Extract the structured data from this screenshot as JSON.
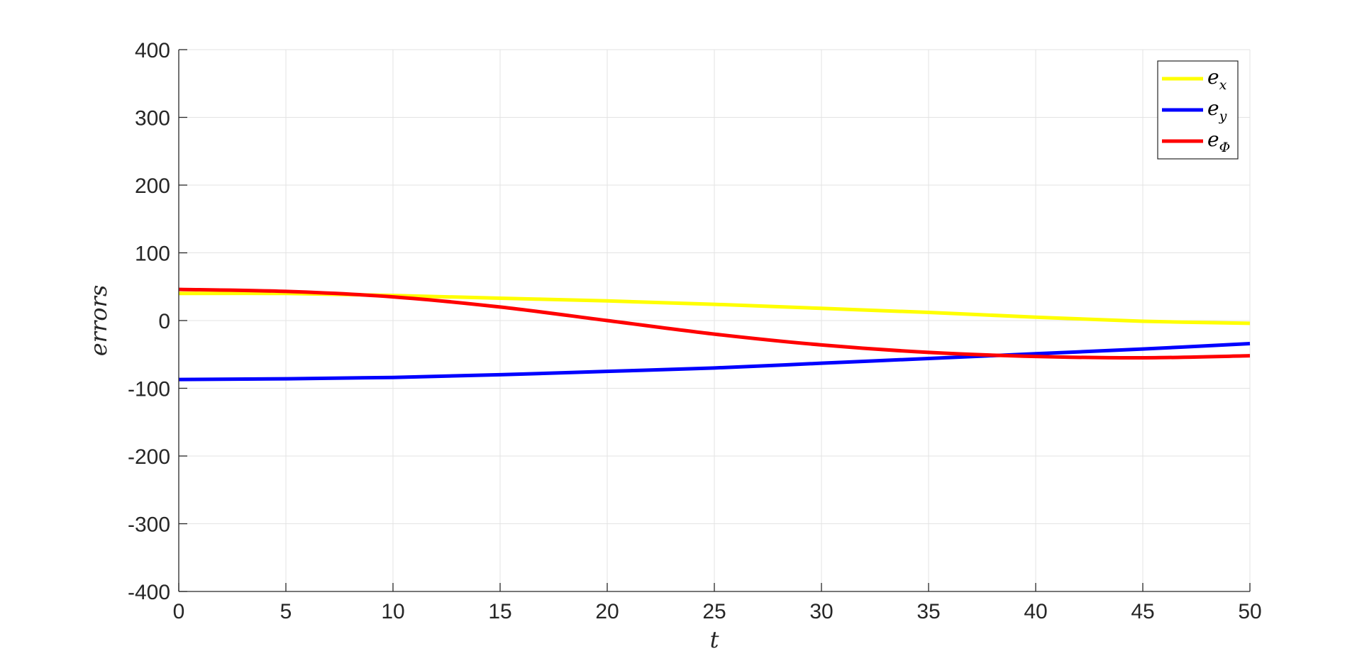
{
  "chart_data": {
    "type": "line",
    "xlabel": "t",
    "ylabel": "errors",
    "xlim": [
      0,
      50
    ],
    "ylim": [
      -400,
      400
    ],
    "xticks": [
      0,
      5,
      10,
      15,
      20,
      25,
      30,
      35,
      40,
      45,
      50
    ],
    "yticks": [
      -400,
      -300,
      -200,
      -100,
      0,
      100,
      200,
      300,
      400
    ],
    "grid": true,
    "legend_position": "top-right",
    "x": [
      0,
      5,
      10,
      15,
      20,
      25,
      30,
      35,
      40,
      45,
      50
    ],
    "series": [
      {
        "name": "e_x",
        "legend_base": "e",
        "legend_sub": "x",
        "color": "#ffff00",
        "values": [
          40,
          40,
          37,
          33,
          29,
          24,
          18,
          12,
          5,
          -1,
          -4
        ]
      },
      {
        "name": "e_y",
        "legend_base": "e",
        "legend_sub": "y",
        "color": "#0000ff",
        "values": [
          -87,
          -86,
          -84,
          -80,
          -75,
          -70,
          -63,
          -56,
          -49,
          -42,
          -34
        ]
      },
      {
        "name": "e_Φ",
        "legend_base": "e",
        "legend_sub": "Φ",
        "color": "#ff0000",
        "values": [
          46,
          43,
          35,
          20,
          0,
          -20,
          -36,
          -47,
          -53,
          -55,
          -52
        ]
      }
    ]
  }
}
